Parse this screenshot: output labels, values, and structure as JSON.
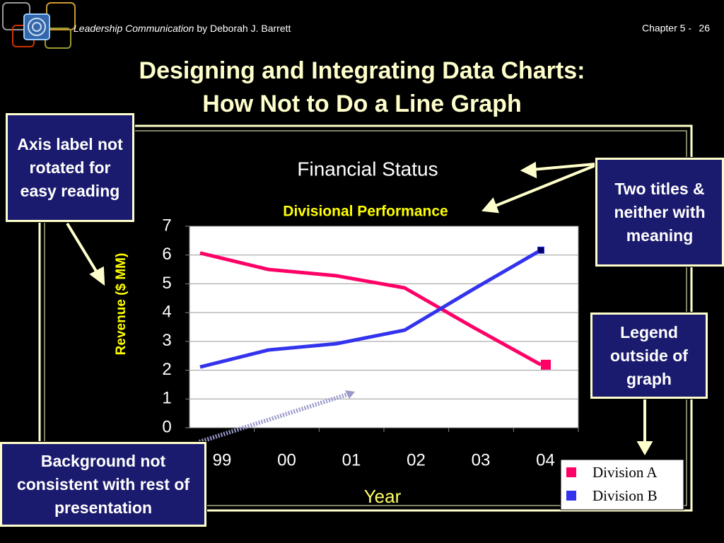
{
  "header": {
    "book": "Leadership Communication",
    "author": " by Deborah J. Barrett",
    "chapter": "Chapter 5 -",
    "page": "26"
  },
  "title": [
    "Designing and Integrating Data Charts:",
    "How Not to Do a Line Graph"
  ],
  "callouts": [
    "Axis label not rotated for easy reading",
    "Two titles & neither with meaning",
    "Legend outside of graph",
    "Background not consistent with rest of presentation"
  ],
  "chart_data": {
    "type": "line",
    "title": "Financial Status",
    "subtitle": "Divisional Performance",
    "x_label": "Year",
    "y_label": "Revenue ($ MM)",
    "categories": [
      "99",
      "00",
      "01",
      "02",
      "03",
      "04"
    ],
    "series": [
      {
        "name": "Division A",
        "color": "#ff0066",
        "values": [
          6.07,
          5.5,
          5.28,
          4.86,
          3.5,
          2.19
        ]
      },
      {
        "name": "Division B",
        "color": "#3333ee",
        "values": [
          2.11,
          2.7,
          2.92,
          3.39,
          4.8,
          6.17
        ]
      }
    ],
    "ylim": [
      0,
      7
    ],
    "yticks": [
      0,
      1,
      2,
      3,
      4,
      5,
      6,
      7
    ],
    "grid": true
  }
}
